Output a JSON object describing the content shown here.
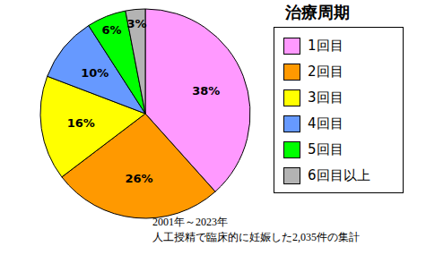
{
  "chart_data": {
    "type": "pie",
    "title": "治療周期",
    "categories": [
      "1回目",
      "2回目",
      "3回目",
      "4回目",
      "5回目",
      "6回目以上"
    ],
    "values": [
      38,
      26,
      16,
      10,
      6,
      3
    ],
    "value_labels": [
      "38%",
      "26%",
      "16%",
      "10%",
      "6%",
      "3%"
    ],
    "colors": [
      "#ff99ff",
      "#ff9900",
      "#ffff00",
      "#6699ff",
      "#00ff00",
      "#b3b3b3"
    ],
    "data_labels": true,
    "legend": "right",
    "annotations": [
      "2001年～2023年",
      "人工授精で臨床的に妊娠した2,035件の集計"
    ]
  }
}
